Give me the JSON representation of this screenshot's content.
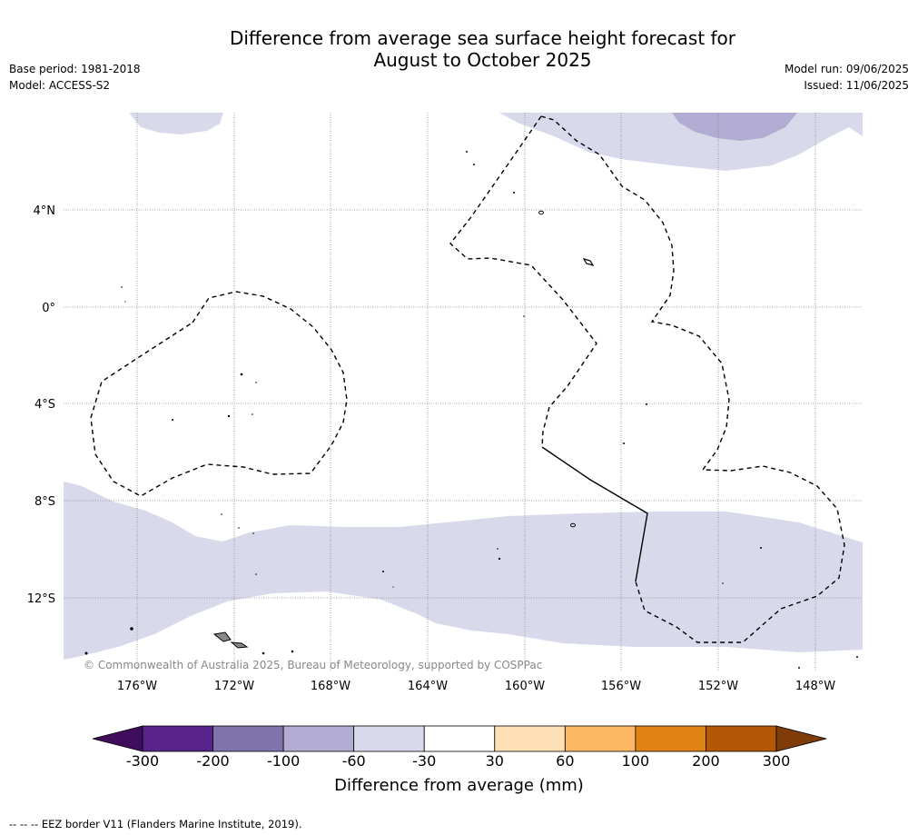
{
  "title_line1": "Difference from average sea surface height forecast for",
  "title_line2": "August to October 2025",
  "base_period": "Base period: 1981-2018",
  "model": "Model: ACCESS-S2",
  "model_run": "Model run: 09/06/2025",
  "issued": "Issued: 11/06/2025",
  "copyright": "© Commonwealth of Australia 2025, Bureau of Meteorology, supported by COSPPac",
  "lon_ticks": [
    "176°W",
    "172°W",
    "168°W",
    "164°W",
    "160°W",
    "156°W",
    "152°W",
    "148°W"
  ],
  "lat_ticks": [
    "4°N",
    "0°",
    "4°S",
    "8°S",
    "12°S"
  ],
  "colorbar": {
    "title": "Difference from average (mm)",
    "labels": [
      "-300",
      "-200",
      "-100",
      "-60",
      "-30",
      "30",
      "60",
      "100",
      "200",
      "300"
    ],
    "colors": [
      "#3f0d5c",
      "#58238a",
      "#8073ac",
      "#b2abd2",
      "#d8daeb",
      "#ffffff",
      "#fee0b6",
      "#fdb863",
      "#e08214",
      "#b35806",
      "#7f3b08"
    ]
  },
  "legend_note": "--  --  -- EEZ border V11 (Flanders Marine Institute, 2019)."
}
